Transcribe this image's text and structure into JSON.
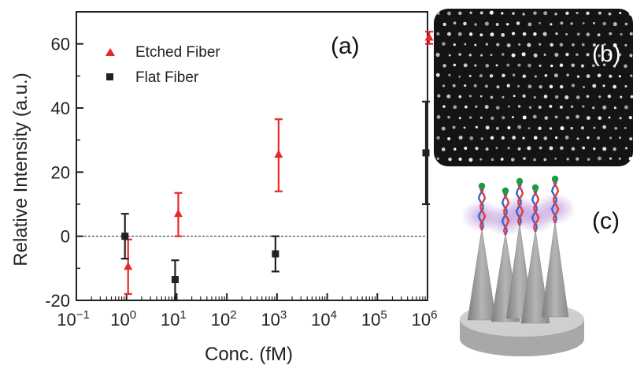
{
  "panels": {
    "a": "(a)",
    "b": "(b)",
    "c": "(c)"
  },
  "chart_data": {
    "type": "scatter",
    "xlabel": "Conc. (fM)",
    "ylabel": "Relative Intensity (a.u.)",
    "x_scale": "log",
    "xlim": [
      0.1,
      1000000
    ],
    "ylim": [
      -20,
      70
    ],
    "y_ticks": [
      -20,
      0,
      20,
      40,
      60
    ],
    "x_tick_exponents": [
      -1,
      0,
      1,
      2,
      3,
      4,
      5,
      6
    ],
    "x_tick_base": "10",
    "zero_line": true,
    "legend_position": "top-left",
    "series": [
      {
        "name": "Etched Fiber",
        "marker": "triangle",
        "color": "#e8262b",
        "points": [
          {
            "x": 1,
            "y": -9.5,
            "err_low": -18,
            "err_high": -1
          },
          {
            "x": 10,
            "y": 7,
            "err_low": 0,
            "err_high": 13.5
          },
          {
            "x": 1000,
            "y": 25.5,
            "err_low": 14,
            "err_high": 36.5
          },
          {
            "x": 1000000,
            "y": 62,
            "err_low": 60,
            "err_high": 63.8
          }
        ]
      },
      {
        "name": "Flat Fiber",
        "marker": "square",
        "color": "#222222",
        "points": [
          {
            "x": 1,
            "y": 0,
            "err_low": -7,
            "err_high": 7
          },
          {
            "x": 10,
            "y": -13.5,
            "err_low": -20,
            "err_high": -7.5
          },
          {
            "x": 1000,
            "y": -5.5,
            "err_low": -11,
            "err_high": 0
          },
          {
            "x": 1000000,
            "y": 26,
            "err_low": 10,
            "err_high": 42
          }
        ]
      }
    ]
  },
  "colors": {
    "etched": "#e8262b",
    "flat": "#222222",
    "micrograph_bg": "#141414",
    "dna_red": "#e03a3a",
    "dna_blue": "#3a66c8",
    "dna_tip": "#1e9b3c",
    "glow": "#b48ad8",
    "cone": "#9c9c9c",
    "base": "#b8b8b8"
  }
}
